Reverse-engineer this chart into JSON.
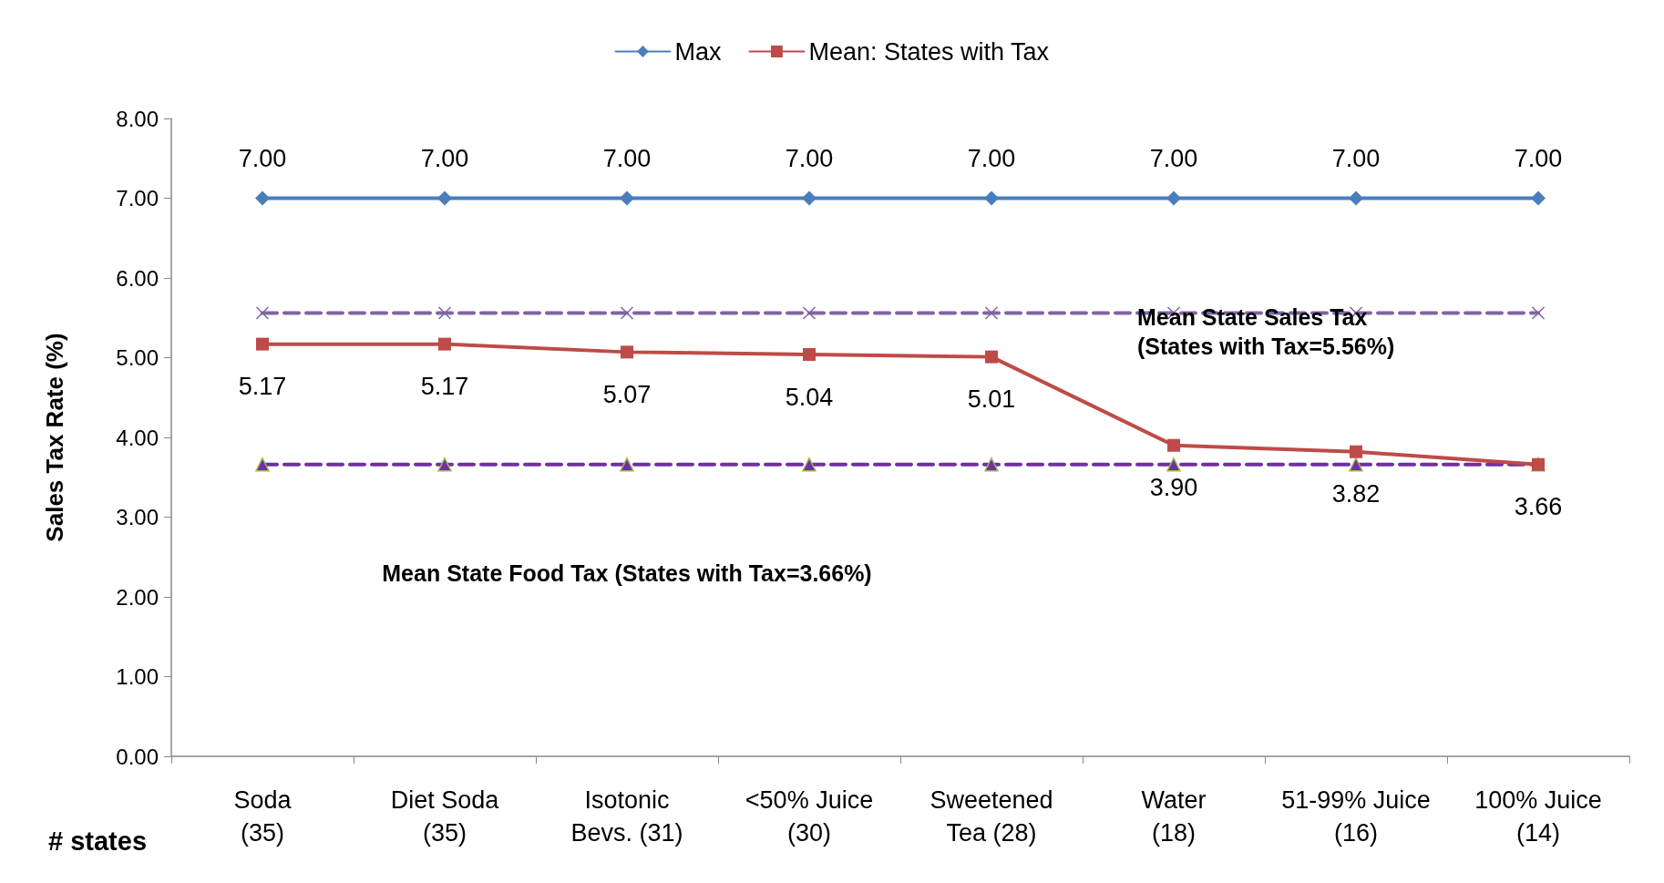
{
  "chart_data": {
    "type": "line",
    "categories": [
      "Soda\n(35)",
      "Diet Soda\n(35)",
      "Isotonic\nBevs. (31)",
      "<50% Juice\n(30)",
      "Sweetened\nTea (28)",
      "Water\n(18)",
      "51-99% Juice\n(16)",
      "100% Juice\n(14)"
    ],
    "series": [
      {
        "name": "Max",
        "color": "#4a7ebb",
        "marker": "diamond",
        "line_style": "solid",
        "values": [
          7,
          7,
          7,
          7,
          7,
          7,
          7,
          7
        ],
        "value_labels": [
          "7.00",
          "7.00",
          "7.00",
          "7.00",
          "7.00",
          "7.00",
          "7.00",
          "7.00"
        ]
      },
      {
        "name": "Mean: States with Tax",
        "color": "#be4b48",
        "marker": "square",
        "line_style": "solid",
        "values": [
          5.17,
          5.17,
          5.07,
          5.04,
          5.01,
          3.9,
          3.82,
          3.66
        ],
        "value_labels": [
          "5.17",
          "5.17",
          "5.07",
          "5.04",
          "5.01",
          "3.90",
          "3.82",
          "3.66"
        ]
      },
      {
        "color": "#8064a2",
        "marker": "cross",
        "line_style": "dashed",
        "values": [
          5.56,
          5.56,
          5.56,
          5.56,
          5.56,
          5.56,
          5.56,
          5.56
        ]
      },
      {
        "color": "#7030a0",
        "marker": "triangle",
        "line_style": "dashed",
        "values": [
          3.66,
          3.66,
          3.66,
          3.66,
          3.66,
          3.66,
          3.66,
          3.66
        ]
      }
    ],
    "ylabel": "Sales Tax Rate (%)",
    "ylim": [
      0,
      8
    ],
    "yticks": [
      {
        "value": 0,
        "label": "0.00"
      },
      {
        "value": 1,
        "label": "1.00"
      },
      {
        "value": 2,
        "label": "2.00"
      },
      {
        "value": 3,
        "label": "3.00"
      },
      {
        "value": 4,
        "label": "4.00"
      },
      {
        "value": 5,
        "label": "5.00"
      },
      {
        "value": 6,
        "label": "6.00"
      },
      {
        "value": 7,
        "label": "7.00"
      },
      {
        "value": 8,
        "label": "8.00"
      }
    ],
    "annotations": [
      {
        "text": "Mean State Sales Tax\n(States with Tax=5.56%)",
        "x": "Water\n(18)",
        "y": 5.56
      },
      "Mean State Food Tax (States with Tax=3.66%)",
      "# states"
    ],
    "grid": false,
    "legend": "top"
  }
}
